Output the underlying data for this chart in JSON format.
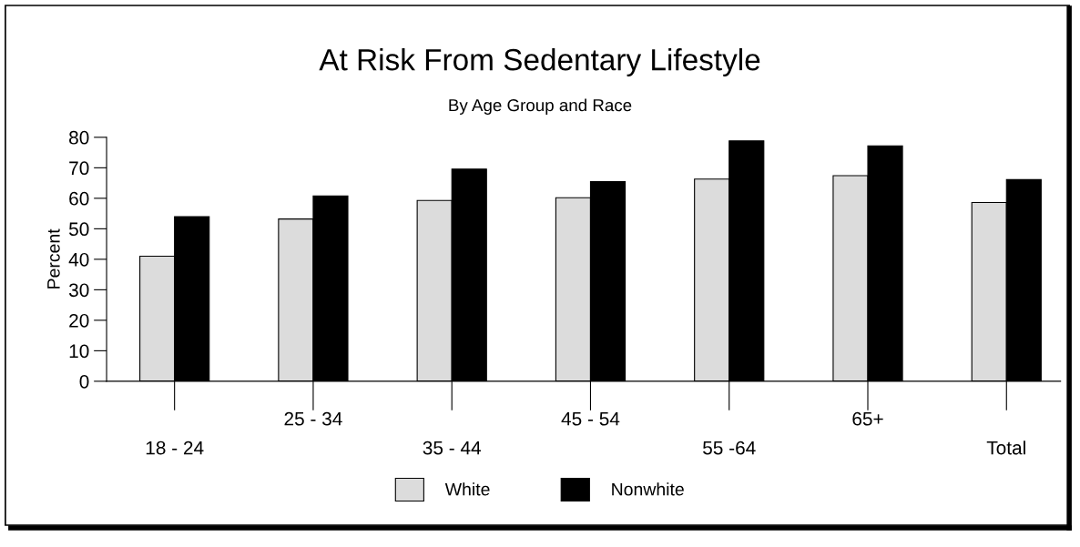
{
  "chart_data": {
    "type": "bar",
    "title": "At Risk From Sedentary Lifestyle",
    "subtitle": "By Age Group and Race",
    "ylabel": "Percent",
    "categories": [
      "18 - 24",
      "25 - 34",
      "35 - 44",
      "45 - 54",
      "55 -64",
      "65+",
      "Total"
    ],
    "series": [
      {
        "name": "White",
        "color": "#dcdcdc",
        "values": [
          41,
          53.2,
          59.3,
          60.2,
          66.3,
          67.4,
          58.6
        ]
      },
      {
        "name": "Nonwhite",
        "color": "#000000",
        "values": [
          54,
          60.8,
          69.6,
          65.5,
          78.8,
          77.2,
          66.1
        ]
      }
    ],
    "ylim": [
      0,
      80
    ],
    "yticks": [
      0,
      10,
      20,
      30,
      40,
      50,
      60,
      70,
      80
    ],
    "grid": false,
    "legend": "bottom"
  }
}
